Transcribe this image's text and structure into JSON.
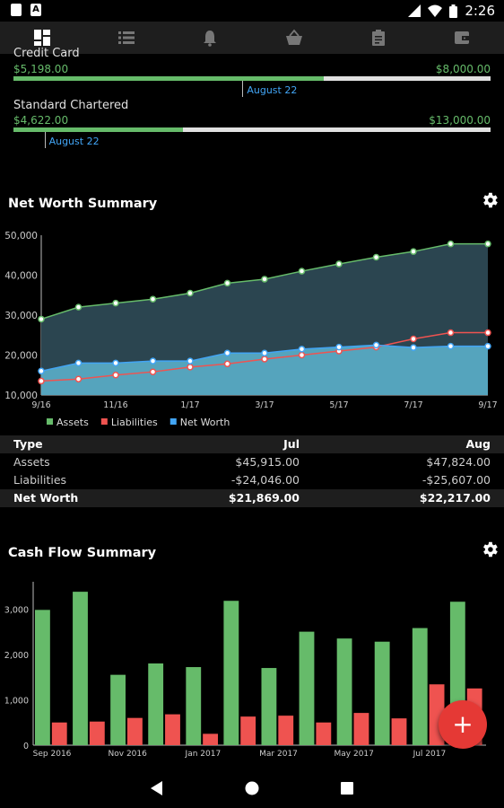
{
  "status_bar": {
    "time": "2:26"
  },
  "nav_tabs": [
    {
      "name": "tab-dashboard",
      "icon": "dashboard-icon",
      "active": true
    },
    {
      "name": "tab-list",
      "icon": "list-icon",
      "active": false
    },
    {
      "name": "tab-reminders",
      "icon": "bell-icon",
      "active": false
    },
    {
      "name": "tab-shopping",
      "icon": "basket-icon",
      "active": false
    },
    {
      "name": "tab-clipboard",
      "icon": "clipboard-icon",
      "active": false
    },
    {
      "name": "tab-wallet",
      "icon": "wallet-icon",
      "active": false
    }
  ],
  "accounts": [
    {
      "name": "Credit Card",
      "value": "$5,198.00",
      "limit": "$8,000.00",
      "progress": 0.65,
      "date_label": "August 22",
      "date_pos": 0.48
    },
    {
      "name": "Standard Chartered",
      "value": "$4,622.00",
      "limit": "$13,000.00",
      "progress": 0.355,
      "date_label": "August 22",
      "date_pos": 0.065
    }
  ],
  "net_worth": {
    "title": "Net Worth Summary",
    "legend": [
      "Assets",
      "Liabilities",
      "Net Worth"
    ],
    "table": {
      "headers": [
        "Type",
        "Jul",
        "Aug"
      ],
      "rows": [
        [
          "Assets",
          "$45,915.00",
          "$47,824.00"
        ],
        [
          "Liabilities",
          "-$24,046.00",
          "-$25,607.00"
        ],
        [
          "Net Worth",
          "$21,869.00",
          "$22,217.00"
        ]
      ]
    }
  },
  "cash_flow": {
    "title": "Cash Flow Summary"
  },
  "colors": {
    "green": "#66bb6a",
    "red": "#ef5350",
    "blue": "#42a5f5",
    "fab": "#e53935"
  },
  "chart_data": [
    {
      "type": "area",
      "title": "Net Worth Summary",
      "x": [
        "9/16",
        "10/16",
        "11/16",
        "12/16",
        "1/17",
        "2/17",
        "3/17",
        "4/17",
        "5/17",
        "6/17",
        "7/17",
        "8/17",
        "9/17"
      ],
      "xticks": [
        "9/16",
        "11/16",
        "1/17",
        "3/17",
        "5/17",
        "7/17",
        "9/17"
      ],
      "yticks": [
        "10,000",
        "20,000",
        "30,000",
        "40,000",
        "50,000"
      ],
      "ylim": [
        10000,
        50000
      ],
      "legend_position": "bottom-left",
      "series": [
        {
          "name": "Assets",
          "values": [
            29000,
            32000,
            33000,
            34000,
            35500,
            38000,
            39000,
            41000,
            42800,
            44500,
            45915,
            47824,
            47824
          ]
        },
        {
          "name": "Liabilities",
          "values": [
            13500,
            14000,
            15000,
            15800,
            17000,
            17800,
            19000,
            20000,
            21000,
            22000,
            24046,
            25607,
            25607
          ]
        },
        {
          "name": "Net Worth",
          "values": [
            16000,
            18000,
            18000,
            18500,
            18500,
            20500,
            20500,
            21500,
            22000,
            22500,
            21869,
            22217,
            22217
          ]
        }
      ]
    },
    {
      "type": "bar",
      "title": "Cash Flow Summary",
      "categories": [
        "Sep 2016",
        "Oct 2016",
        "Nov 2016",
        "Dec 2016",
        "Jan 2017",
        "Feb 2017",
        "Mar 2017",
        "Apr 2017",
        "May 2017",
        "Jun 2017",
        "Jul 2017",
        "Aug 2017"
      ],
      "xticks": [
        "Sep 2016",
        "Nov 2016",
        "Jan 2017",
        "Mar 2017",
        "May 2017",
        "Jul 2017"
      ],
      "yticks": [
        "0",
        "1,000",
        "2,000",
        "3,000"
      ],
      "ylim": [
        0,
        3600
      ],
      "series": [
        {
          "values": [
            2980,
            3380,
            1550,
            1800,
            1720,
            3180,
            1700,
            2500,
            2350,
            2280,
            2580,
            3160
          ]
        },
        {
          "values": [
            500,
            520,
            600,
            680,
            250,
            630,
            650,
            500,
            710,
            590,
            1340,
            1250
          ]
        }
      ]
    }
  ]
}
